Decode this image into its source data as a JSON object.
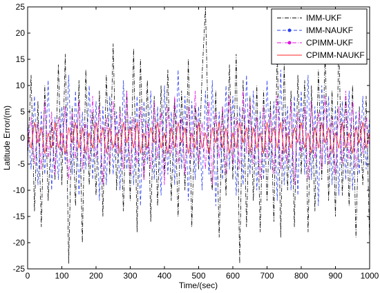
{
  "chart_data": {
    "type": "line",
    "xlabel": "Time/(sec)",
    "ylabel": "Latitude Error/(m)",
    "xlim": [
      0,
      1000
    ],
    "ylim": [
      -25,
      25
    ],
    "x_ticks": [
      0,
      100,
      200,
      300,
      400,
      500,
      600,
      700,
      800,
      900,
      1000
    ],
    "y_ticks": [
      -25,
      -20,
      -15,
      -10,
      -5,
      0,
      5,
      10,
      15,
      20,
      25
    ],
    "x_tick_labels": [
      "0",
      "100",
      "200",
      "300",
      "400",
      "500",
      "600",
      "700",
      "800",
      "900",
      "1000"
    ],
    "y_tick_labels": [
      "-25",
      "-20",
      "-15",
      "-10",
      "-5",
      "0",
      "5",
      "10",
      "15",
      "20",
      "25"
    ],
    "grid": false,
    "legend_position": "top-right",
    "series": [
      {
        "name": "IMM-UKF",
        "color": "#000000",
        "style": "dash-dot",
        "x": [
          0,
          10,
          20,
          30,
          40,
          50,
          60,
          70,
          80,
          90,
          100,
          110,
          120,
          130,
          140,
          150,
          160,
          170,
          180,
          190,
          200,
          210,
          220,
          230,
          240,
          250,
          260,
          270,
          280,
          290,
          300,
          310,
          320,
          330,
          340,
          350,
          360,
          370,
          380,
          390,
          400,
          410,
          420,
          430,
          440,
          450,
          460,
          470,
          480,
          490,
          500,
          510,
          520,
          530,
          540,
          550,
          560,
          570,
          580,
          590,
          600,
          610,
          620,
          630,
          640,
          650,
          660,
          670,
          680,
          690,
          700,
          710,
          720,
          730,
          740,
          750,
          760,
          770,
          780,
          790,
          800,
          810,
          820,
          830,
          840,
          850,
          860,
          870,
          880,
          890,
          900,
          910,
          920,
          930,
          940,
          950,
          960,
          970,
          980,
          990,
          1000
        ],
        "values": [
          -4,
          12,
          -14,
          7,
          -17,
          10,
          -12,
          3,
          -8,
          14,
          -9,
          16,
          -24,
          6,
          -13,
          11,
          -20,
          13,
          -9,
          5,
          -11,
          9,
          -15,
          12,
          -7,
          18,
          -10,
          6,
          -14,
          9,
          -12,
          17,
          -18,
          15,
          -8,
          11,
          -16,
          8,
          -13,
          10,
          -7,
          13,
          -12,
          7,
          -15,
          9,
          -10,
          15,
          -17,
          6,
          -6,
          12,
          25,
          -4,
          -10,
          9,
          -19,
          6,
          -11,
          14,
          -8,
          16,
          -24,
          11,
          -17,
          8,
          -12,
          10,
          -18,
          9,
          -12,
          7,
          -16,
          17,
          -19,
          14,
          -10,
          9,
          -17,
          12,
          -7,
          11,
          -18,
          10,
          -14,
          13,
          -8,
          16,
          -12,
          9,
          -15,
          18,
          -11,
          8,
          -13,
          10,
          -19,
          6,
          -9,
          8,
          -20
        ]
      },
      {
        "name": "IMM-NAUKF",
        "color": "#2a3ff5",
        "style": "dashed",
        "x": [
          0,
          10,
          20,
          30,
          40,
          50,
          60,
          70,
          80,
          90,
          100,
          110,
          120,
          130,
          140,
          150,
          160,
          170,
          180,
          190,
          200,
          210,
          220,
          230,
          240,
          250,
          260,
          270,
          280,
          290,
          300,
          310,
          320,
          330,
          340,
          350,
          360,
          370,
          380,
          390,
          400,
          410,
          420,
          430,
          440,
          450,
          460,
          470,
          480,
          490,
          500,
          510,
          520,
          530,
          540,
          550,
          560,
          570,
          580,
          590,
          600,
          610,
          620,
          630,
          640,
          650,
          660,
          670,
          680,
          690,
          700,
          710,
          720,
          730,
          740,
          750,
          760,
          770,
          780,
          790,
          800,
          810,
          820,
          830,
          840,
          850,
          860,
          870,
          880,
          890,
          900,
          910,
          920,
          930,
          940,
          950,
          960,
          970,
          980,
          990,
          1000
        ],
        "values": [
          3,
          -6,
          8,
          -9,
          5,
          -7,
          11,
          -10,
          4,
          -8,
          6,
          -5,
          12,
          -7,
          9,
          -11,
          5,
          -6,
          10,
          -8,
          7,
          -12,
          6,
          -9,
          8,
          -7,
          5,
          -10,
          11,
          -6,
          4,
          -9,
          8,
          -13,
          7,
          -5,
          9,
          -8,
          6,
          -11,
          10,
          -7,
          5,
          -9,
          13,
          -6,
          8,
          -12,
          7,
          -8,
          6,
          -10,
          9,
          -7,
          11,
          -13,
          5,
          -8,
          10,
          -6,
          8,
          -11,
          6,
          -9,
          12,
          -7,
          9,
          -10,
          5,
          -8,
          11,
          -6,
          7,
          -12,
          13,
          -9,
          6,
          -10,
          8,
          -11,
          9,
          -7,
          12,
          -8,
          6,
          -13,
          10,
          -5,
          8,
          -9,
          6,
          -11,
          7,
          -8,
          9,
          -10,
          5,
          -7,
          8,
          -6,
          4
        ]
      },
      {
        "name": "CPIMM-UKF",
        "color": "#e010e0",
        "style": "dash-dot",
        "x": [
          0,
          10,
          20,
          30,
          40,
          50,
          60,
          70,
          80,
          90,
          100,
          110,
          120,
          130,
          140,
          150,
          160,
          170,
          180,
          190,
          200,
          210,
          220,
          230,
          240,
          250,
          260,
          270,
          280,
          290,
          300,
          310,
          320,
          330,
          340,
          350,
          360,
          370,
          380,
          390,
          400,
          410,
          420,
          430,
          440,
          450,
          460,
          470,
          480,
          490,
          500,
          510,
          520,
          530,
          540,
          550,
          560,
          570,
          580,
          590,
          600,
          610,
          620,
          630,
          640,
          650,
          660,
          670,
          680,
          690,
          700,
          710,
          720,
          730,
          740,
          750,
          760,
          770,
          780,
          790,
          800,
          810,
          820,
          830,
          840,
          850,
          860,
          870,
          880,
          890,
          900,
          910,
          920,
          930,
          940,
          950,
          960,
          970,
          980,
          990,
          1000
        ],
        "values": [
          -2,
          4,
          -5,
          3,
          -6,
          7,
          -4,
          5,
          -7,
          4,
          -3,
          6,
          -8,
          5,
          -4,
          7,
          -6,
          3,
          -5,
          8,
          -4,
          6,
          -9,
          4,
          -5,
          7,
          -3,
          5,
          -6,
          9,
          -7,
          4,
          -5,
          6,
          -8,
          3,
          -6,
          7,
          -4,
          5,
          -9,
          6,
          -3,
          8,
          -5,
          4,
          -7,
          6,
          -4,
          9,
          -5,
          3,
          -6,
          7,
          -9,
          5,
          -4,
          6,
          -7,
          8,
          -5,
          4,
          -6,
          9,
          -3,
          7,
          -5,
          4,
          -8,
          6,
          -4,
          5,
          -7,
          8,
          -6,
          4,
          -5,
          7,
          -9,
          5,
          -3,
          6,
          -8,
          7,
          -4,
          5,
          -6,
          8,
          -5,
          4,
          -7,
          6,
          -5,
          9,
          -4,
          7,
          -6,
          5,
          -3,
          4,
          -2
        ]
      },
      {
        "name": "CPIMM-NAUKF",
        "color": "#ff2020",
        "style": "solid",
        "x": [
          0,
          10,
          20,
          30,
          40,
          50,
          60,
          70,
          80,
          90,
          100,
          110,
          120,
          130,
          140,
          150,
          160,
          170,
          180,
          190,
          200,
          210,
          220,
          230,
          240,
          250,
          260,
          270,
          280,
          290,
          300,
          310,
          320,
          330,
          340,
          350,
          360,
          370,
          380,
          390,
          400,
          410,
          420,
          430,
          440,
          450,
          460,
          470,
          480,
          490,
          500,
          510,
          520,
          530,
          540,
          550,
          560,
          570,
          580,
          590,
          600,
          610,
          620,
          630,
          640,
          650,
          660,
          670,
          680,
          690,
          700,
          710,
          720,
          730,
          740,
          750,
          760,
          770,
          780,
          790,
          800,
          810,
          820,
          830,
          840,
          850,
          860,
          870,
          880,
          890,
          900,
          910,
          920,
          930,
          940,
          950,
          960,
          970,
          980,
          990,
          1000
        ],
        "values": [
          1,
          -2,
          3,
          -1,
          2,
          -3,
          1,
          -2,
          3,
          -2,
          1,
          -3,
          2,
          -1,
          3,
          -2,
          2,
          -3,
          1,
          -2,
          3,
          -1,
          2,
          -3,
          2,
          -2,
          1,
          -3,
          3,
          -1,
          2,
          -2,
          3,
          -3,
          1,
          -2,
          2,
          -1,
          3,
          -2,
          1,
          -3,
          2,
          -2,
          3,
          -1,
          2,
          -3,
          1,
          -2,
          3,
          -2,
          1,
          -3,
          2,
          -1,
          3,
          -2,
          2,
          -3,
          1,
          -2,
          3,
          -1,
          2,
          -3,
          2,
          -2,
          1,
          -3,
          3,
          -1,
          2,
          -2,
          3,
          -3,
          1,
          -2,
          2,
          -1,
          3,
          -2,
          1,
          -3,
          2,
          -2,
          3,
          -1,
          2,
          -3,
          1,
          -2,
          3,
          -2,
          1,
          -3,
          2,
          -1,
          3,
          -2,
          1
        ]
      }
    ]
  }
}
